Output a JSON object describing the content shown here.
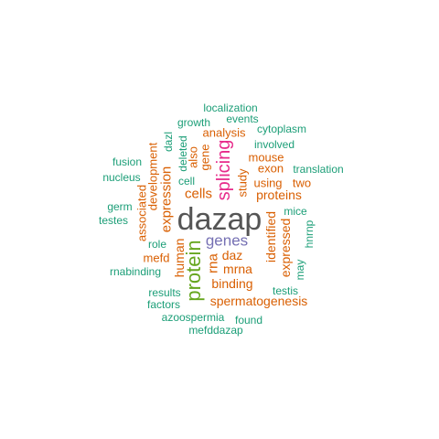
{
  "palette": {
    "teal": "#1b9e77",
    "orange": "#d95f02",
    "purple": "#7570b3",
    "magenta": "#e7298a",
    "green": "#66a61e",
    "gray": "#555555"
  },
  "words": [
    {
      "text": "dazap",
      "color": "gray"
    },
    {
      "text": "protein",
      "color": "green"
    },
    {
      "text": "splicing",
      "color": "magenta"
    },
    {
      "text": "genes",
      "color": "purple"
    },
    {
      "text": "cells",
      "color": "orange"
    },
    {
      "text": "expression",
      "color": "orange"
    },
    {
      "text": "proteins",
      "color": "orange"
    },
    {
      "text": "spermatogenesis",
      "color": "orange"
    },
    {
      "text": "rna",
      "color": "orange"
    },
    {
      "text": "human",
      "color": "orange"
    },
    {
      "text": "daz",
      "color": "orange"
    },
    {
      "text": "mrna",
      "color": "orange"
    },
    {
      "text": "binding",
      "color": "orange"
    },
    {
      "text": "identified",
      "color": "orange"
    },
    {
      "text": "expressed",
      "color": "orange"
    },
    {
      "text": "analysis",
      "color": "orange"
    },
    {
      "text": "exon",
      "color": "orange"
    },
    {
      "text": "mouse",
      "color": "orange"
    },
    {
      "text": "using",
      "color": "orange"
    },
    {
      "text": "study",
      "color": "orange"
    },
    {
      "text": "gene",
      "color": "orange"
    },
    {
      "text": "also",
      "color": "orange"
    },
    {
      "text": "development",
      "color": "orange"
    },
    {
      "text": "associated",
      "color": "orange"
    },
    {
      "text": "mefd",
      "color": "orange"
    },
    {
      "text": "two",
      "color": "orange"
    },
    {
      "text": "localization",
      "color": "teal"
    },
    {
      "text": "events",
      "color": "teal"
    },
    {
      "text": "growth",
      "color": "teal"
    },
    {
      "text": "cytoplasm",
      "color": "teal"
    },
    {
      "text": "involved",
      "color": "teal"
    },
    {
      "text": "translation",
      "color": "teal"
    },
    {
      "text": "fusion",
      "color": "teal"
    },
    {
      "text": "nucleus",
      "color": "teal"
    },
    {
      "text": "germ",
      "color": "teal"
    },
    {
      "text": "testes",
      "color": "teal"
    },
    {
      "text": "role",
      "color": "teal"
    },
    {
      "text": "rnabinding",
      "color": "teal"
    },
    {
      "text": "results",
      "color": "teal"
    },
    {
      "text": "factors",
      "color": "teal"
    },
    {
      "text": "azoospermia",
      "color": "teal"
    },
    {
      "text": "found",
      "color": "teal"
    },
    {
      "text": "mefddazap",
      "color": "teal"
    },
    {
      "text": "testis",
      "color": "teal"
    },
    {
      "text": "may",
      "color": "teal"
    },
    {
      "text": "mice",
      "color": "teal"
    },
    {
      "text": "hnrnp",
      "color": "teal"
    },
    {
      "text": "dazl",
      "color": "teal"
    },
    {
      "text": "deleted",
      "color": "teal"
    },
    {
      "text": "cell",
      "color": "teal"
    }
  ]
}
